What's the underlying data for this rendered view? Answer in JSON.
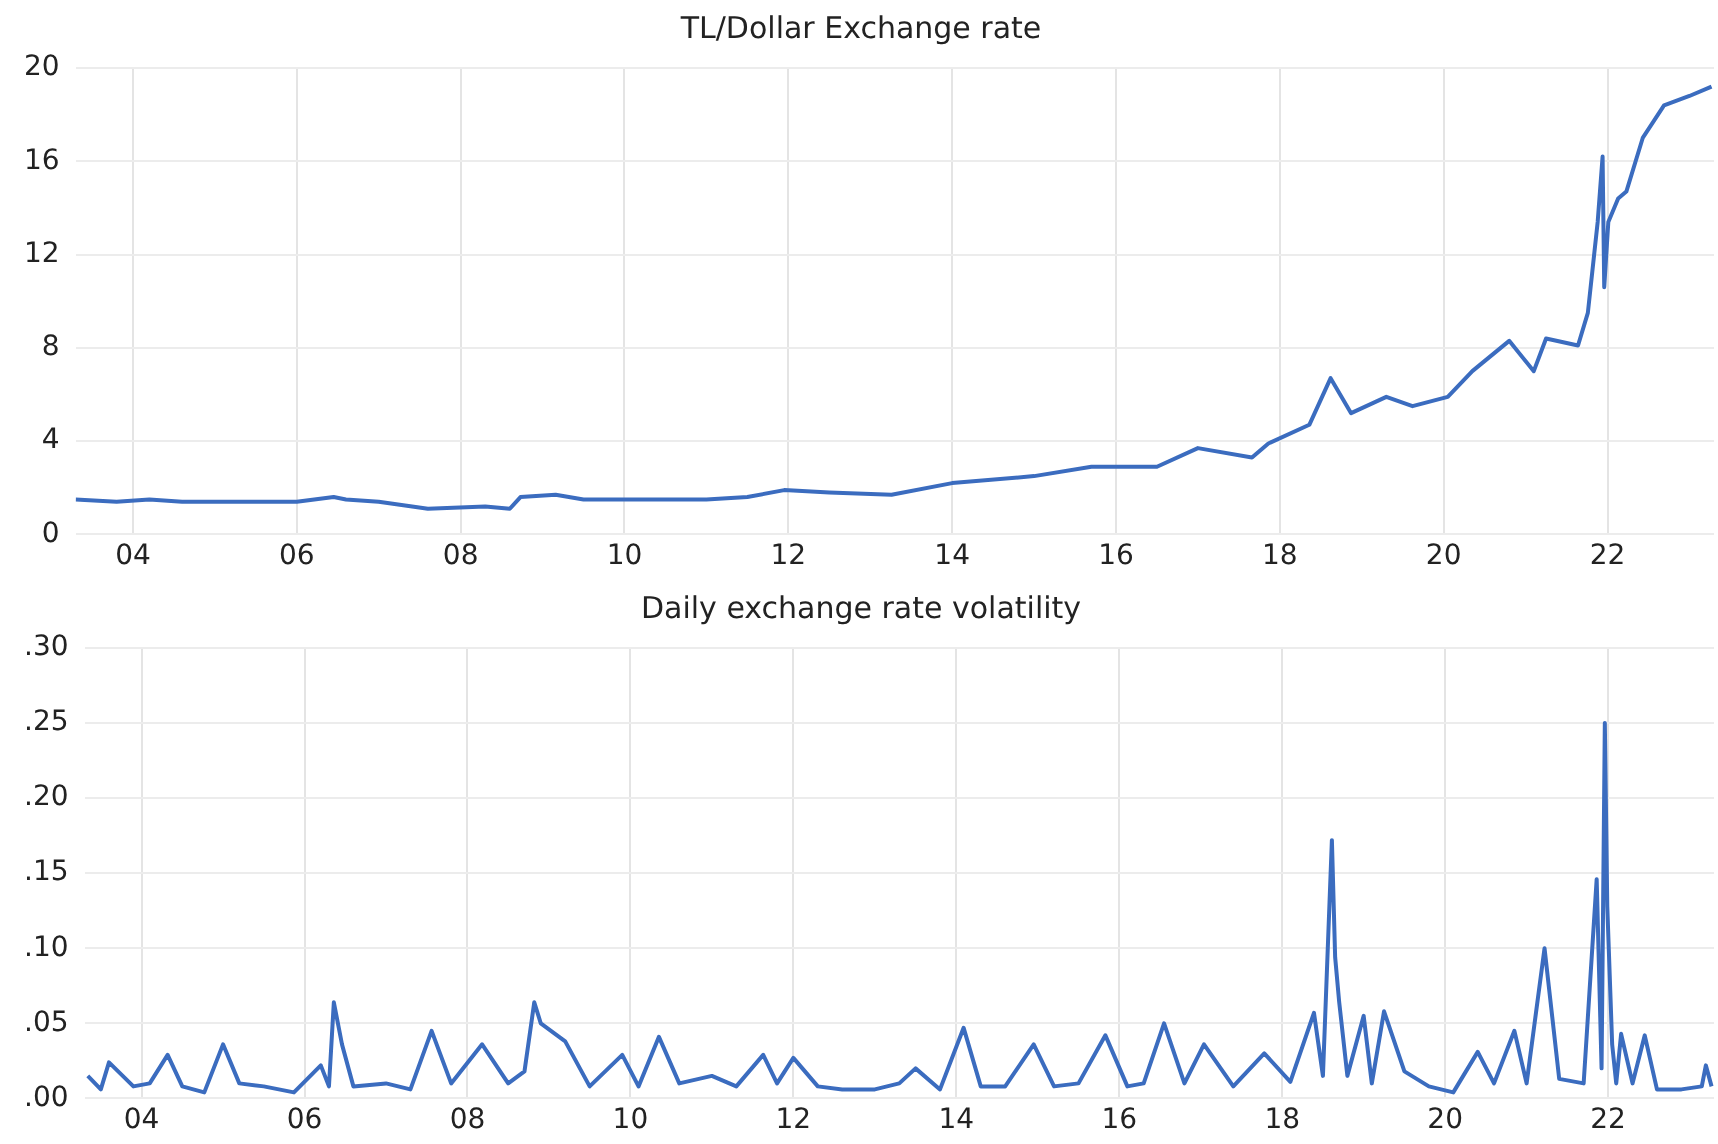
{
  "chart_data": [
    {
      "type": "line",
      "title": "TL/Dollar Exchange rate",
      "grid": true,
      "marker": "none",
      "line_style": "solid",
      "xlim": [
        2003.3,
        2023.3
      ],
      "ylim": [
        0,
        20
      ],
      "yticks": [
        0,
        4,
        8,
        12,
        16,
        20
      ],
      "xticks": [
        {
          "value": 2004,
          "label": "04"
        },
        {
          "value": 2006,
          "label": "06"
        },
        {
          "value": 2008,
          "label": "08"
        },
        {
          "value": 2010,
          "label": "10"
        },
        {
          "value": 2012,
          "label": "12"
        },
        {
          "value": 2014,
          "label": "14"
        },
        {
          "value": 2016,
          "label": "16"
        },
        {
          "value": 2018,
          "label": "18"
        },
        {
          "value": 2020,
          "label": "20"
        },
        {
          "value": 2022,
          "label": "22"
        }
      ],
      "series": [
        {
          "color": "#3b6cbf",
          "x": [
            2003.3,
            2003.8,
            2004.2,
            2004.6,
            2005.5,
            2006.0,
            2006.45,
            2006.6,
            2007.0,
            2007.6,
            2008.3,
            2008.6,
            2008.73,
            2009.16,
            2009.5,
            2010.5,
            2011.0,
            2011.5,
            2011.95,
            2012.5,
            2013.26,
            2014.0,
            2015.0,
            2015.7,
            2016.5,
            2017.0,
            2017.66,
            2017.86,
            2018.36,
            2018.62,
            2018.87,
            2019.3,
            2019.62,
            2020.05,
            2020.35,
            2020.8,
            2021.1,
            2021.25,
            2021.64,
            2021.76,
            2021.88,
            2021.94,
            2021.96,
            2022.01,
            2022.13,
            2022.23,
            2022.43,
            2022.69,
            2023.0,
            2023.27
          ],
          "values": [
            1.5,
            1.4,
            1.5,
            1.4,
            1.4,
            1.4,
            1.6,
            1.5,
            1.4,
            1.1,
            1.2,
            1.1,
            1.6,
            1.7,
            1.5,
            1.5,
            1.5,
            1.6,
            1.9,
            1.8,
            1.7,
            2.2,
            2.5,
            2.9,
            2.9,
            3.7,
            3.3,
            3.9,
            4.7,
            6.7,
            5.2,
            5.9,
            5.5,
            5.9,
            7.0,
            8.3,
            7.0,
            8.4,
            8.1,
            9.5,
            13.4,
            16.2,
            10.6,
            13.4,
            14.4,
            14.7,
            17.0,
            18.4,
            18.8,
            19.2
          ]
        }
      ]
    },
    {
      "type": "line",
      "title": "Daily exchange rate volatility",
      "grid": true,
      "marker": "none",
      "line_style": "solid",
      "xlim": [
        2003.3,
        2023.3
      ],
      "ylim": [
        0,
        0.3
      ],
      "yticks": [
        {
          "value": 0,
          "label": ".00"
        },
        {
          "value": 0.05,
          "label": ".05"
        },
        {
          "value": 0.1,
          "label": ".10"
        },
        {
          "value": 0.15,
          "label": ".15"
        },
        {
          "value": 0.2,
          "label": ".20"
        },
        {
          "value": 0.25,
          "label": ".25"
        },
        {
          "value": 0.3,
          "label": ".30"
        }
      ],
      "xticks": [
        {
          "value": 2004,
          "label": "04"
        },
        {
          "value": 2006,
          "label": "06"
        },
        {
          "value": 2008,
          "label": "08"
        },
        {
          "value": 2010,
          "label": "10"
        },
        {
          "value": 2012,
          "label": "12"
        },
        {
          "value": 2014,
          "label": "14"
        },
        {
          "value": 2016,
          "label": "16"
        },
        {
          "value": 2018,
          "label": "18"
        },
        {
          "value": 2020,
          "label": "20"
        },
        {
          "value": 2022,
          "label": "22"
        }
      ],
      "series": [
        {
          "color": "#3b6cbf",
          "x": [
            2003.34,
            2003.5,
            2003.6,
            2003.9,
            2004.1,
            2004.32,
            2004.5,
            2004.77,
            2005.0,
            2005.2,
            2005.5,
            2005.87,
            2006.2,
            2006.3,
            2006.36,
            2006.46,
            2006.6,
            2007.0,
            2007.3,
            2007.56,
            2007.8,
            2008.18,
            2008.5,
            2008.7,
            2008.82,
            2008.9,
            2009.2,
            2009.5,
            2009.9,
            2010.1,
            2010.35,
            2010.6,
            2011.0,
            2011.3,
            2011.63,
            2011.8,
            2012.0,
            2012.3,
            2012.6,
            2013.0,
            2013.3,
            2013.5,
            2013.8,
            2014.09,
            2014.3,
            2014.6,
            2014.95,
            2015.2,
            2015.5,
            2015.83,
            2016.1,
            2016.3,
            2016.55,
            2016.8,
            2017.04,
            2017.4,
            2017.78,
            2018.1,
            2018.39,
            2018.5,
            2018.61,
            2018.65,
            2018.7,
            2018.8,
            2019.0,
            2019.1,
            2019.25,
            2019.5,
            2019.8,
            2020.1,
            2020.4,
            2020.6,
            2020.85,
            2021.0,
            2021.22,
            2021.4,
            2021.7,
            2021.86,
            2021.92,
            2021.96,
            2021.99,
            2022.05,
            2022.1,
            2022.16,
            2022.3,
            2022.45,
            2022.6,
            2022.9,
            2023.15,
            2023.2,
            2023.27
          ],
          "values": [
            0.015,
            0.006,
            0.024,
            0.008,
            0.01,
            0.029,
            0.008,
            0.004,
            0.036,
            0.01,
            0.008,
            0.004,
            0.022,
            0.008,
            0.064,
            0.036,
            0.008,
            0.01,
            0.006,
            0.045,
            0.01,
            0.036,
            0.01,
            0.018,
            0.064,
            0.05,
            0.038,
            0.008,
            0.029,
            0.008,
            0.041,
            0.01,
            0.015,
            0.008,
            0.029,
            0.01,
            0.027,
            0.008,
            0.006,
            0.006,
            0.01,
            0.02,
            0.006,
            0.047,
            0.008,
            0.008,
            0.036,
            0.008,
            0.01,
            0.042,
            0.008,
            0.01,
            0.05,
            0.01,
            0.036,
            0.008,
            0.03,
            0.011,
            0.057,
            0.015,
            0.172,
            0.094,
            0.064,
            0.015,
            0.055,
            0.01,
            0.058,
            0.018,
            0.008,
            0.004,
            0.031,
            0.01,
            0.045,
            0.01,
            0.1,
            0.013,
            0.01,
            0.146,
            0.02,
            0.25,
            0.128,
            0.036,
            0.01,
            0.043,
            0.01,
            0.042,
            0.006,
            0.006,
            0.008,
            0.022,
            0.008
          ]
        }
      ]
    }
  ]
}
